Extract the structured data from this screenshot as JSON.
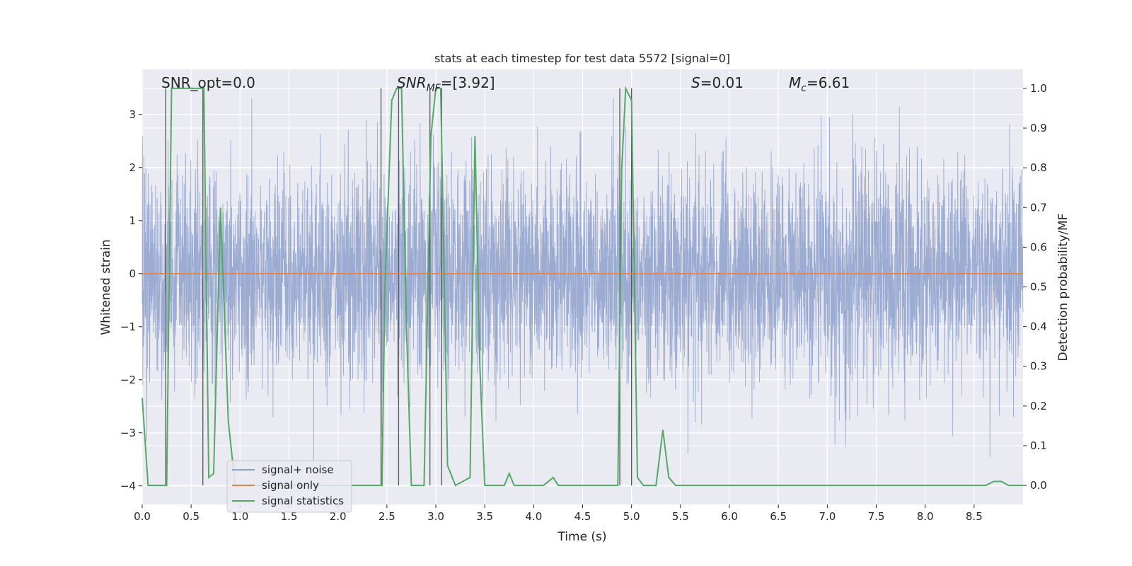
{
  "chart_data": {
    "type": "line",
    "title": "stats at each timestep for test data 5572 [signal=0]",
    "xlabel": "Time (s)",
    "ylabel_left": "Whitened strain",
    "ylabel_right": "Detection probability/MF",
    "xlim": [
      0,
      9
    ],
    "ylim_left": [
      -4.35,
      3.85
    ],
    "ylim_right": [
      -0.048,
      1.048
    ],
    "x_ticks": [
      0,
      0.5,
      1,
      1.5,
      2,
      2.5,
      3,
      3.5,
      4,
      4.5,
      5,
      5.5,
      6,
      6.5,
      7,
      7.5,
      8,
      8.5
    ],
    "x_tick_labels": [
      "0.0",
      "0.5",
      "1.0",
      "1.5",
      "2.0",
      "2.5",
      "3.0",
      "3.5",
      "4.0",
      "4.5",
      "5.0",
      "5.5",
      "6.0",
      "6.5",
      "7.0",
      "7.5",
      "8.0",
      "8.5"
    ],
    "y_left_ticks": [
      3,
      2,
      1,
      0,
      -1,
      -2,
      -3,
      -4
    ],
    "y_left_tick_labels": [
      "3",
      "2",
      "1",
      "0",
      "−1",
      "−2",
      "−3",
      "−4"
    ],
    "y_right_ticks": [
      1.0,
      0.9,
      0.8,
      0.7,
      0.6,
      0.5,
      0.4,
      0.3,
      0.2,
      0.1,
      0.0
    ],
    "y_right_tick_labels": [
      "1.0",
      "0.9",
      "0.8",
      "0.7",
      "0.6",
      "0.5",
      "0.4",
      "0.3",
      "0.2",
      "0.1",
      "0.0"
    ],
    "grid": true,
    "legend_position": "lower-left",
    "annotations": {
      "snr_opt": "SNR_opt=0.0",
      "snr_mf_symbol": "SNR",
      "snr_mf_subscript": "MF",
      "snr_mf_value": "=[3.92]",
      "s_symbol": "S",
      "s_value": "=0.01",
      "mc_symbol": "M",
      "mc_subscript": "c",
      "mc_value": "=6.61"
    },
    "series": [
      {
        "name": "signal+ noise",
        "color": "#8da0cb",
        "axis": "left",
        "description_values": {
          "x_range": [
            0,
            9
          ],
          "typical_amplitude": 1.0,
          "extreme_range": [
            -3.9,
            3.3
          ]
        }
      },
      {
        "name": "signal only",
        "color": "#dd8452",
        "axis": "left",
        "x": [
          0,
          9
        ],
        "y": [
          0,
          0
        ]
      },
      {
        "name": "signal statistics",
        "color": "#55a868",
        "axis": "right",
        "x": [
          0,
          0.06,
          0.25,
          0.3,
          0.32,
          0.6,
          0.63,
          0.68,
          0.73,
          0.8,
          0.88,
          0.95,
          1.0,
          2.45,
          2.48,
          2.55,
          2.6,
          2.65,
          2.7,
          2.75,
          2.88,
          2.95,
          3.0,
          3.05,
          3.12,
          3.2,
          3.35,
          3.4,
          3.45,
          3.5,
          3.7,
          3.75,
          3.8,
          4.1,
          4.2,
          4.25,
          4.8,
          4.86,
          4.9,
          4.94,
          5.0,
          5.06,
          5.12,
          5.25,
          5.32,
          5.38,
          5.45,
          8.62,
          8.7,
          8.78,
          8.85,
          9.0
        ],
        "y": [
          0.22,
          0.0,
          0.0,
          1.0,
          1.0,
          1.0,
          1.0,
          0.02,
          0.03,
          0.7,
          0.16,
          0.0,
          0.0,
          0.0,
          0.5,
          0.97,
          1.0,
          1.0,
          0.4,
          0.0,
          0.0,
          0.88,
          1.0,
          1.0,
          0.05,
          0.0,
          0.02,
          0.88,
          0.3,
          0.0,
          0.0,
          0.03,
          0.0,
          0.0,
          0.02,
          0.0,
          0.0,
          0.0,
          0.8,
          1.0,
          0.97,
          0.02,
          0.0,
          0.0,
          0.14,
          0.02,
          0.0,
          0.0,
          0.01,
          0.01,
          0.0,
          0.0
        ]
      }
    ],
    "vlines": [
      0.24,
      0.62,
      2.44,
      2.62,
      2.94,
      3.06,
      4.88,
      5.0
    ],
    "vline_color": "#555555"
  }
}
